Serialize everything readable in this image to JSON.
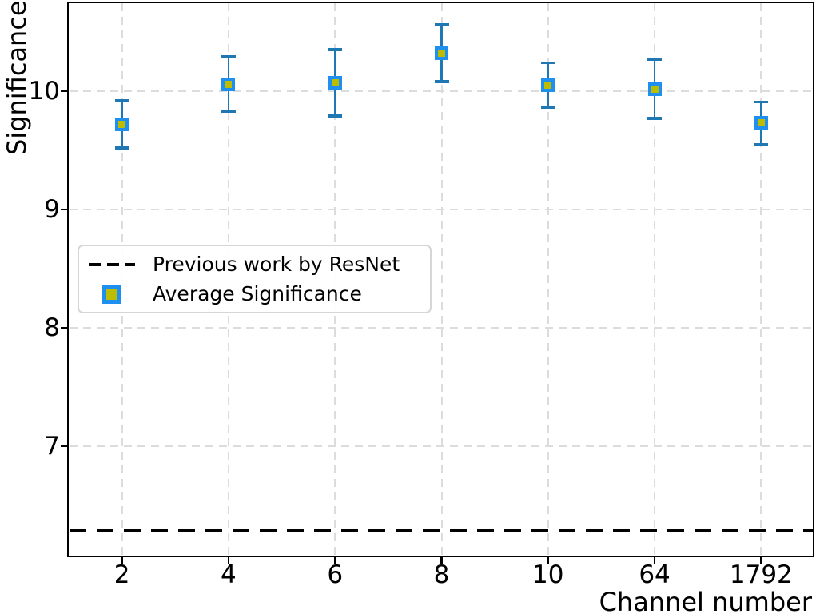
{
  "chart_data": {
    "type": "scatter",
    "title": "",
    "xlabel": "Channel number",
    "ylabel": "Significance",
    "categories": [
      "2",
      "4",
      "6",
      "8",
      "10",
      "64",
      "1792"
    ],
    "yticks": [
      7,
      8,
      9,
      10
    ],
    "ylim": [
      6.06,
      10.75
    ],
    "grid": true,
    "series": [
      {
        "name": "Average Significance",
        "type": "errorbar-scatter",
        "marker": "square",
        "values": [
          9.72,
          10.06,
          10.07,
          10.32,
          10.05,
          10.02,
          9.73
        ],
        "errors": [
          0.2,
          0.23,
          0.28,
          0.24,
          0.19,
          0.25,
          0.18
        ]
      },
      {
        "name": "Previous work by ResNet",
        "type": "hline",
        "value": 6.28,
        "style": "dashed"
      }
    ],
    "legend_position": "center left inside axes"
  },
  "legend": {
    "items": [
      {
        "sample": "dashed-line",
        "label": "Previous work by ResNet"
      },
      {
        "sample": "square-marker",
        "label": "Average Significance"
      }
    ]
  },
  "colors": {
    "errorbar": "#1f77b4",
    "marker_fill": "#bcbc00",
    "marker_edge": "#2090f0",
    "resnet_line": "#000000",
    "grid": "#dcdcdc",
    "spine": "#000000",
    "text": "#000000"
  }
}
